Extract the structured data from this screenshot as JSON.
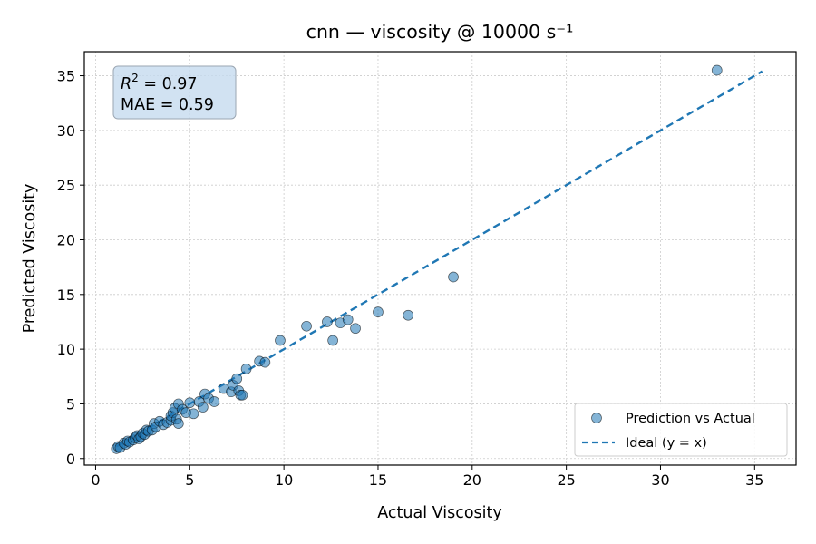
{
  "chart_data": {
    "type": "scatter",
    "title": "cnn — viscosity @ 10000 s⁻¹",
    "xlabel": "Actual Viscosity",
    "ylabel": "Predicted Viscosity",
    "xlim": [
      -0.6,
      37.2
    ],
    "ylim": [
      -0.6,
      37.2
    ],
    "xticks": [
      0,
      5,
      10,
      15,
      20,
      25,
      30,
      35
    ],
    "yticks": [
      0,
      5,
      10,
      15,
      20,
      25,
      30,
      35
    ],
    "grid": true,
    "legend_position": "lower-right",
    "stats": {
      "r2_symbol": "R",
      "r2_exponent": "2",
      "r2_value": " = 0.97",
      "mae_label": "MAE = 0.59"
    },
    "series": [
      {
        "name": "Prediction vs Actual",
        "kind": "scatter",
        "color": "#1f77b4",
        "points": [
          [
            1.1,
            0.9
          ],
          [
            1.2,
            1.1
          ],
          [
            1.3,
            1.0
          ],
          [
            1.5,
            1.4
          ],
          [
            1.6,
            1.3
          ],
          [
            1.7,
            1.6
          ],
          [
            1.8,
            1.5
          ],
          [
            2.0,
            1.7
          ],
          [
            2.1,
            1.9
          ],
          [
            2.2,
            2.1
          ],
          [
            2.3,
            1.8
          ],
          [
            2.4,
            2.0
          ],
          [
            2.5,
            2.3
          ],
          [
            2.6,
            2.2
          ],
          [
            2.7,
            2.6
          ],
          [
            2.8,
            2.5
          ],
          [
            3.0,
            2.6
          ],
          [
            3.1,
            3.2
          ],
          [
            3.2,
            2.9
          ],
          [
            3.4,
            3.4
          ],
          [
            3.6,
            3.1
          ],
          [
            3.8,
            3.3
          ],
          [
            4.0,
            3.5
          ],
          [
            4.0,
            3.9
          ],
          [
            4.1,
            4.2
          ],
          [
            4.2,
            4.6
          ],
          [
            4.3,
            3.6
          ],
          [
            4.4,
            5.0
          ],
          [
            4.4,
            3.2
          ],
          [
            4.6,
            4.5
          ],
          [
            4.8,
            4.2
          ],
          [
            5.0,
            5.1
          ],
          [
            5.2,
            4.1
          ],
          [
            5.5,
            5.2
          ],
          [
            5.7,
            4.7
          ],
          [
            5.8,
            5.9
          ],
          [
            6.0,
            5.5
          ],
          [
            6.3,
            5.2
          ],
          [
            6.8,
            6.4
          ],
          [
            7.2,
            6.1
          ],
          [
            7.3,
            6.7
          ],
          [
            7.5,
            7.3
          ],
          [
            7.6,
            6.2
          ],
          [
            7.7,
            5.8
          ],
          [
            7.8,
            5.8
          ],
          [
            8.0,
            8.2
          ],
          [
            8.7,
            8.9
          ],
          [
            9.0,
            8.8
          ],
          [
            9.8,
            10.8
          ],
          [
            11.2,
            12.1
          ],
          [
            12.3,
            12.5
          ],
          [
            12.6,
            10.8
          ],
          [
            13.0,
            12.4
          ],
          [
            13.4,
            12.7
          ],
          [
            13.8,
            11.9
          ],
          [
            15.0,
            13.4
          ],
          [
            16.6,
            13.1
          ],
          [
            19.0,
            16.6
          ],
          [
            33.0,
            35.5
          ]
        ]
      },
      {
        "name": "Ideal (y = x)",
        "kind": "line",
        "style": "dashed",
        "color": "#1f77b4",
        "points": [
          [
            1.1,
            1.1
          ],
          [
            35.4,
            35.4
          ]
        ]
      }
    ]
  }
}
